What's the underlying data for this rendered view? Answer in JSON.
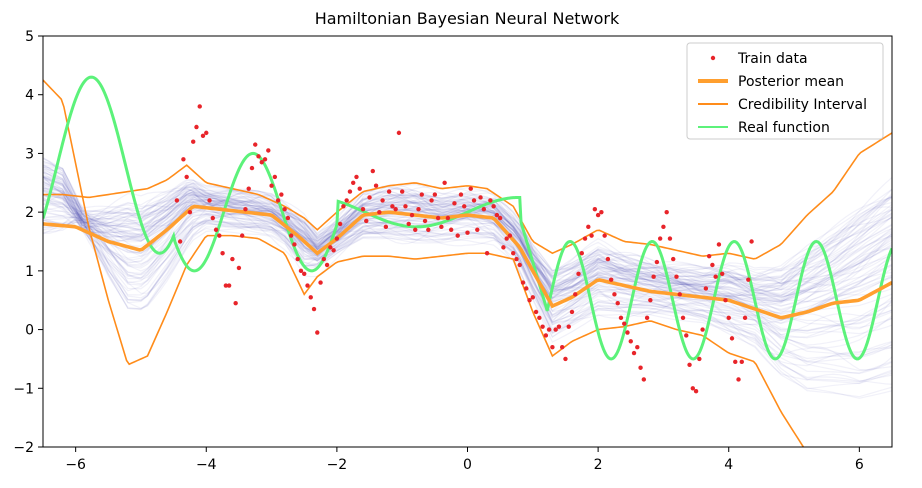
{
  "chart_data": {
    "type": "line",
    "title": "Hamiltonian Bayesian Neural Network",
    "xlabel": "",
    "ylabel": "",
    "xlim": [
      -6.5,
      6.5
    ],
    "ylim": [
      -2,
      5
    ],
    "xticks": [
      -6,
      -4,
      -2,
      0,
      2,
      4,
      6
    ],
    "yticks": [
      -2,
      -1,
      0,
      1,
      2,
      3,
      4,
      5
    ],
    "grid": false,
    "legend_position": "top-right",
    "colors": {
      "train": "#e8242a",
      "mean": "#ff9f2f",
      "ci": "#ff8c1a",
      "real": "#5cf27a",
      "samples": "#3a3aa8"
    },
    "legend": [
      {
        "label": "Train data",
        "kind": "points",
        "color": "#e8242a"
      },
      {
        "label": "Posterior mean",
        "kind": "thick-line",
        "color": "#ff9f2f"
      },
      {
        "label": "Credibility Interval",
        "kind": "line",
        "color": "#ff8c1a"
      },
      {
        "label": "Real function",
        "kind": "line",
        "color": "#5cf27a"
      }
    ],
    "series": [
      {
        "name": "Posterior mean",
        "x": [
          -6.5,
          -6.0,
          -5.5,
          -5.0,
          -4.6,
          -4.2,
          -3.8,
          -3.4,
          -3.0,
          -2.6,
          -2.3,
          -2.0,
          -1.6,
          -1.2,
          -0.8,
          -0.4,
          0.0,
          0.4,
          0.8,
          1.0,
          1.3,
          1.6,
          2.0,
          2.4,
          2.8,
          3.2,
          3.6,
          4.0,
          4.4,
          4.8,
          5.2,
          5.6,
          6.0,
          6.5
        ],
        "y": [
          1.8,
          1.75,
          1.5,
          1.35,
          1.7,
          2.1,
          2.05,
          2.0,
          1.95,
          1.6,
          1.3,
          1.55,
          1.95,
          2.0,
          1.95,
          1.9,
          1.95,
          1.9,
          1.4,
          1.0,
          0.4,
          0.55,
          0.85,
          0.75,
          0.65,
          0.6,
          0.55,
          0.5,
          0.35,
          0.2,
          0.3,
          0.45,
          0.5,
          0.8
        ]
      },
      {
        "name": "Credibility Interval (upper)",
        "x": [
          -6.5,
          -6.2,
          -5.8,
          -5.5,
          -5.2,
          -4.9,
          -4.6,
          -4.3,
          -4.0,
          -3.6,
          -3.2,
          -2.8,
          -2.5,
          -2.3,
          -2.0,
          -1.6,
          -1.2,
          -0.8,
          -0.4,
          0.0,
          0.3,
          0.7,
          1.0,
          1.3,
          1.6,
          2.0,
          2.4,
          2.8,
          3.2,
          3.6,
          4.0,
          4.4,
          4.8,
          5.2,
          5.6,
          6.0,
          6.5
        ],
        "y": [
          2.3,
          2.3,
          2.25,
          2.3,
          2.35,
          2.4,
          2.55,
          2.8,
          2.5,
          2.4,
          2.3,
          2.1,
          1.9,
          1.7,
          2.0,
          2.35,
          2.45,
          2.5,
          2.4,
          2.45,
          2.4,
          2.1,
          1.5,
          1.3,
          1.45,
          1.7,
          1.5,
          1.45,
          1.35,
          1.25,
          1.3,
          1.2,
          1.45,
          1.95,
          2.35,
          3.0,
          3.35
        ]
      },
      {
        "name": "Credibility Interval (lower)",
        "x": [
          -6.5,
          -6.2,
          -5.8,
          -5.5,
          -5.2,
          -4.9,
          -4.6,
          -4.3,
          -4.0,
          -3.6,
          -3.2,
          -2.8,
          -2.5,
          -2.3,
          -2.0,
          -1.6,
          -1.2,
          -0.8,
          -0.4,
          0.0,
          0.3,
          0.7,
          1.0,
          1.3,
          1.6,
          2.0,
          2.4,
          2.8,
          3.2,
          3.6,
          4.0,
          4.4,
          4.8,
          5.2,
          5.6,
          6.0,
          6.5
        ],
        "y": [
          4.25,
          3.9,
          1.75,
          0.5,
          -0.6,
          -0.45,
          0.3,
          1.1,
          1.6,
          1.6,
          1.55,
          1.3,
          0.6,
          0.9,
          1.15,
          1.25,
          1.25,
          1.2,
          1.25,
          1.3,
          1.3,
          1.2,
          0.3,
          -0.45,
          -0.2,
          0.0,
          0.05,
          0.15,
          0.0,
          -0.1,
          -0.4,
          -0.55,
          -1.4,
          -2.1,
          -2.3,
          -2.3,
          -2.3
        ]
      },
      {
        "name": "Real function",
        "formula": "piecewise: x<-4.5: 2.8+1.5*sin(3x); -4.5<=x<-2: 2.0+1.0*sin(3.5x+0.5); -2<=x<0.8: 2.0+0.25*sin(2x); 0.8<=x<1.2: falling step; x>=1.2: 0.5+1.0*sin(5x)",
        "x_range": [
          -6.5,
          6.5
        ]
      }
    ],
    "scatter_series": {
      "name": "Train data",
      "points": [
        [
          -4.45,
          2.2
        ],
        [
          -4.4,
          1.5
        ],
        [
          -4.35,
          2.9
        ],
        [
          -4.3,
          2.6
        ],
        [
          -4.25,
          2.0
        ],
        [
          -4.2,
          3.2
        ],
        [
          -4.15,
          3.45
        ],
        [
          -4.1,
          3.8
        ],
        [
          -4.05,
          3.3
        ],
        [
          -4.0,
          3.35
        ],
        [
          -3.95,
          2.2
        ],
        [
          -3.9,
          1.9
        ],
        [
          -3.85,
          1.7
        ],
        [
          -3.8,
          1.6
        ],
        [
          -3.75,
          1.3
        ],
        [
          -3.7,
          0.75
        ],
        [
          -3.65,
          0.75
        ],
        [
          -3.6,
          1.2
        ],
        [
          -3.55,
          0.45
        ],
        [
          -3.5,
          1.05
        ],
        [
          -3.45,
          1.6
        ],
        [
          -3.4,
          2.05
        ],
        [
          -3.35,
          2.4
        ],
        [
          -3.3,
          2.75
        ],
        [
          -3.25,
          3.15
        ],
        [
          -3.2,
          2.95
        ],
        [
          -3.15,
          2.85
        ],
        [
          -3.1,
          2.9
        ],
        [
          -3.05,
          3.05
        ],
        [
          -3.0,
          2.45
        ],
        [
          -2.95,
          2.6
        ],
        [
          -2.9,
          2.2
        ],
        [
          -2.85,
          2.3
        ],
        [
          -2.8,
          2.05
        ],
        [
          -2.75,
          1.9
        ],
        [
          -2.7,
          1.6
        ],
        [
          -2.65,
          1.45
        ],
        [
          -2.6,
          1.2
        ],
        [
          -2.55,
          1.0
        ],
        [
          -2.5,
          0.95
        ],
        [
          -2.45,
          0.75
        ],
        [
          -2.4,
          0.55
        ],
        [
          -2.35,
          0.35
        ],
        [
          -2.3,
          -0.05
        ],
        [
          -2.25,
          0.8
        ],
        [
          -2.2,
          1.2
        ],
        [
          -2.15,
          1.1
        ],
        [
          -2.1,
          1.4
        ],
        [
          -2.05,
          1.35
        ],
        [
          -2.0,
          1.55
        ],
        [
          -1.95,
          1.8
        ],
        [
          -1.9,
          2.1
        ],
        [
          -1.85,
          2.2
        ],
        [
          -1.8,
          2.35
        ],
        [
          -1.75,
          2.5
        ],
        [
          -1.7,
          2.6
        ],
        [
          -1.65,
          2.4
        ],
        [
          -1.6,
          2.05
        ],
        [
          -1.55,
          1.85
        ],
        [
          -1.5,
          2.25
        ],
        [
          -1.45,
          2.7
        ],
        [
          -1.4,
          2.45
        ],
        [
          -1.35,
          2.0
        ],
        [
          -1.3,
          2.2
        ],
        [
          -1.25,
          1.75
        ],
        [
          -1.2,
          2.35
        ],
        [
          -1.15,
          2.1
        ],
        [
          -1.1,
          2.05
        ],
        [
          -1.05,
          3.35
        ],
        [
          -1.0,
          2.35
        ],
        [
          -0.95,
          2.1
        ],
        [
          -0.9,
          1.8
        ],
        [
          -0.85,
          1.95
        ],
        [
          -0.8,
          1.7
        ],
        [
          -0.75,
          2.05
        ],
        [
          -0.7,
          2.3
        ],
        [
          -0.65,
          1.85
        ],
        [
          -0.6,
          1.7
        ],
        [
          -0.55,
          2.2
        ],
        [
          -0.5,
          2.3
        ],
        [
          -0.45,
          1.9
        ],
        [
          -0.4,
          1.75
        ],
        [
          -0.35,
          2.5
        ],
        [
          -0.3,
          1.9
        ],
        [
          -0.25,
          1.7
        ],
        [
          -0.2,
          2.15
        ],
        [
          -0.15,
          1.6
        ],
        [
          -0.1,
          2.3
        ],
        [
          -0.05,
          2.1
        ],
        [
          0.0,
          1.65
        ],
        [
          0.05,
          2.4
        ],
        [
          0.1,
          2.2
        ],
        [
          0.15,
          1.7
        ],
        [
          0.2,
          2.25
        ],
        [
          0.25,
          2.05
        ],
        [
          0.3,
          1.3
        ],
        [
          0.35,
          2.2
        ],
        [
          0.4,
          2.1
        ],
        [
          0.45,
          1.95
        ],
        [
          0.5,
          1.9
        ],
        [
          0.55,
          1.4
        ],
        [
          0.6,
          1.55
        ],
        [
          0.65,
          1.6
        ],
        [
          0.7,
          1.3
        ],
        [
          0.75,
          1.2
        ],
        [
          0.8,
          1.1
        ],
        [
          0.85,
          0.8
        ],
        [
          0.9,
          0.7
        ],
        [
          0.95,
          0.5
        ],
        [
          1.0,
          0.55
        ],
        [
          1.05,
          0.3
        ],
        [
          1.1,
          0.2
        ],
        [
          1.15,
          0.05
        ],
        [
          1.2,
          -0.1
        ],
        [
          1.25,
          0.0
        ],
        [
          1.3,
          -0.3
        ],
        [
          1.35,
          0.0
        ],
        [
          1.4,
          0.05
        ],
        [
          1.45,
          -0.3
        ],
        [
          1.5,
          -0.5
        ],
        [
          1.55,
          0.05
        ],
        [
          1.6,
          0.3
        ],
        [
          1.65,
          0.6
        ],
        [
          1.7,
          0.95
        ],
        [
          1.75,
          1.3
        ],
        [
          1.8,
          1.55
        ],
        [
          1.85,
          1.75
        ],
        [
          1.9,
          1.6
        ],
        [
          1.95,
          2.05
        ],
        [
          2.0,
          1.95
        ],
        [
          2.05,
          2.0
        ],
        [
          2.1,
          1.6
        ],
        [
          2.15,
          1.2
        ],
        [
          2.2,
          0.85
        ],
        [
          2.25,
          0.6
        ],
        [
          2.3,
          0.45
        ],
        [
          2.35,
          0.2
        ],
        [
          2.4,
          0.1
        ],
        [
          2.45,
          -0.05
        ],
        [
          2.5,
          -0.2
        ],
        [
          2.55,
          -0.4
        ],
        [
          2.6,
          -0.3
        ],
        [
          2.65,
          -0.65
        ],
        [
          2.7,
          -0.85
        ],
        [
          2.75,
          0.2
        ],
        [
          2.8,
          0.5
        ],
        [
          2.85,
          0.9
        ],
        [
          2.9,
          1.15
        ],
        [
          2.95,
          1.55
        ],
        [
          3.0,
          1.75
        ],
        [
          3.05,
          2.0
        ],
        [
          3.1,
          1.55
        ],
        [
          3.15,
          1.2
        ],
        [
          3.2,
          0.9
        ],
        [
          3.25,
          0.6
        ],
        [
          3.3,
          0.2
        ],
        [
          3.35,
          -0.1
        ],
        [
          3.4,
          -0.6
        ],
        [
          3.45,
          -1.0
        ],
        [
          3.5,
          -1.05
        ],
        [
          3.55,
          -0.5
        ],
        [
          3.6,
          0.0
        ],
        [
          3.65,
          0.7
        ],
        [
          3.7,
          1.25
        ],
        [
          3.75,
          1.1
        ],
        [
          3.8,
          0.9
        ],
        [
          3.85,
          1.45
        ],
        [
          3.9,
          0.95
        ],
        [
          3.95,
          0.5
        ],
        [
          4.0,
          0.2
        ],
        [
          4.05,
          -0.15
        ],
        [
          4.1,
          -0.55
        ],
        [
          4.15,
          -0.85
        ],
        [
          4.2,
          -0.55
        ],
        [
          4.25,
          0.2
        ],
        [
          4.3,
          0.85
        ],
        [
          4.35,
          1.5
        ]
      ]
    }
  }
}
